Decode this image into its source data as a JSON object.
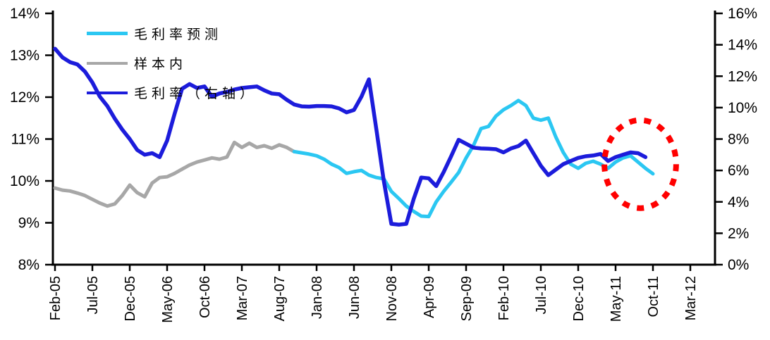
{
  "chart_data": {
    "type": "line",
    "title": "",
    "grid": "off",
    "legend_position": "top-left-inside",
    "legend": [
      {
        "label": "毛利率预测",
        "color": "#2BC7F2"
      },
      {
        "label": "样本内",
        "color": "#A7A7A7"
      },
      {
        "label": "毛利率（右轴）",
        "color": "#1C1CDB"
      }
    ],
    "x_axis": {
      "tick_labels": [
        "Feb-05",
        "Jul-05",
        "Dec-05",
        "May-06",
        "Oct-06",
        "Mar-07",
        "Aug-07",
        "Jan-08",
        "Jun-08",
        "Nov-08",
        "Apr-09",
        "Sep-09",
        "Feb-10",
        "Jul-10",
        "Dec-10",
        "May-11",
        "Oct-11",
        "Mar-12"
      ],
      "months_between_ticks": 5,
      "label_rotation_deg": -90
    },
    "left_axis": {
      "min": 8,
      "max": 14,
      "step": 1,
      "unit": "%",
      "tick_labels": [
        "14%",
        "13%",
        "12%",
        "11%",
        "10%",
        "9%",
        "8%"
      ]
    },
    "right_axis": {
      "min": 0,
      "max": 16,
      "step": 2,
      "unit": "%",
      "tick_labels": [
        "16%",
        "14%",
        "12%",
        "10%",
        "8%",
        "6%",
        "4%",
        "2%",
        "0%"
      ]
    },
    "series": [
      {
        "name": "样本内",
        "axis": "left",
        "color": "#A7A7A7",
        "width": 5,
        "start_month_index": 0,
        "values": [
          9.83,
          9.78,
          9.76,
          9.71,
          9.65,
          9.56,
          9.47,
          9.4,
          9.45,
          9.65,
          9.9,
          9.72,
          9.62,
          9.95,
          10.08,
          10.1,
          10.18,
          10.28,
          10.38,
          10.45,
          10.5,
          10.55,
          10.52,
          10.57,
          10.92,
          10.8,
          10.9,
          10.8,
          10.84,
          10.78,
          10.86,
          10.8,
          10.7
        ]
      },
      {
        "name": "毛利率预测",
        "axis": "left",
        "color": "#2BC7F2",
        "width": 5,
        "start_month_index": 32,
        "values": [
          10.7,
          10.67,
          10.64,
          10.6,
          10.52,
          10.4,
          10.32,
          10.18,
          10.22,
          10.25,
          10.14,
          10.08,
          10.05,
          9.75,
          9.58,
          9.4,
          9.27,
          9.16,
          9.15,
          9.5,
          9.75,
          9.97,
          10.2,
          10.55,
          10.85,
          11.25,
          11.3,
          11.55,
          11.7,
          11.8,
          11.92,
          11.8,
          11.5,
          11.45,
          11.5,
          11.05,
          10.68,
          10.4,
          10.3,
          10.42,
          10.47,
          10.4,
          10.3,
          10.45,
          10.55,
          10.6,
          10.45,
          10.3,
          10.17
        ]
      },
      {
        "name": "毛利率（右轴）",
        "axis": "right",
        "color": "#1C1CDB",
        "width": 5.5,
        "start_month_index": 0,
        "values": [
          13.75,
          13.2,
          12.9,
          12.75,
          12.3,
          11.6,
          10.7,
          10.1,
          9.3,
          8.6,
          8.0,
          7.3,
          7.0,
          7.1,
          6.85,
          7.9,
          9.6,
          11.2,
          11.5,
          11.25,
          11.35,
          10.7,
          10.9,
          11.0,
          11.15,
          11.25,
          11.3,
          11.35,
          11.1,
          10.9,
          10.85,
          10.5,
          10.2,
          10.08,
          10.06,
          10.1,
          10.1,
          10.08,
          9.95,
          9.7,
          9.85,
          10.7,
          11.8,
          8.6,
          5.3,
          2.6,
          2.55,
          2.6,
          4.2,
          5.55,
          5.5,
          5.0,
          5.9,
          6.9,
          7.95,
          7.7,
          7.45,
          7.4,
          7.38,
          7.35,
          7.15,
          7.4,
          7.55,
          7.9,
          7.1,
          6.3,
          5.7,
          6.05,
          6.4,
          6.6,
          6.8,
          6.9,
          6.95,
          7.05,
          6.6,
          6.85,
          7.0,
          7.15,
          7.1,
          6.85
        ]
      }
    ],
    "annotation": {
      "shape": "dotted-ellipse",
      "color": "#FF0000",
      "center_month_index": 78.3,
      "center_value_right_axis": 6.4,
      "radius_months": 4.8,
      "radius_value_right_axis": 2.8
    }
  }
}
